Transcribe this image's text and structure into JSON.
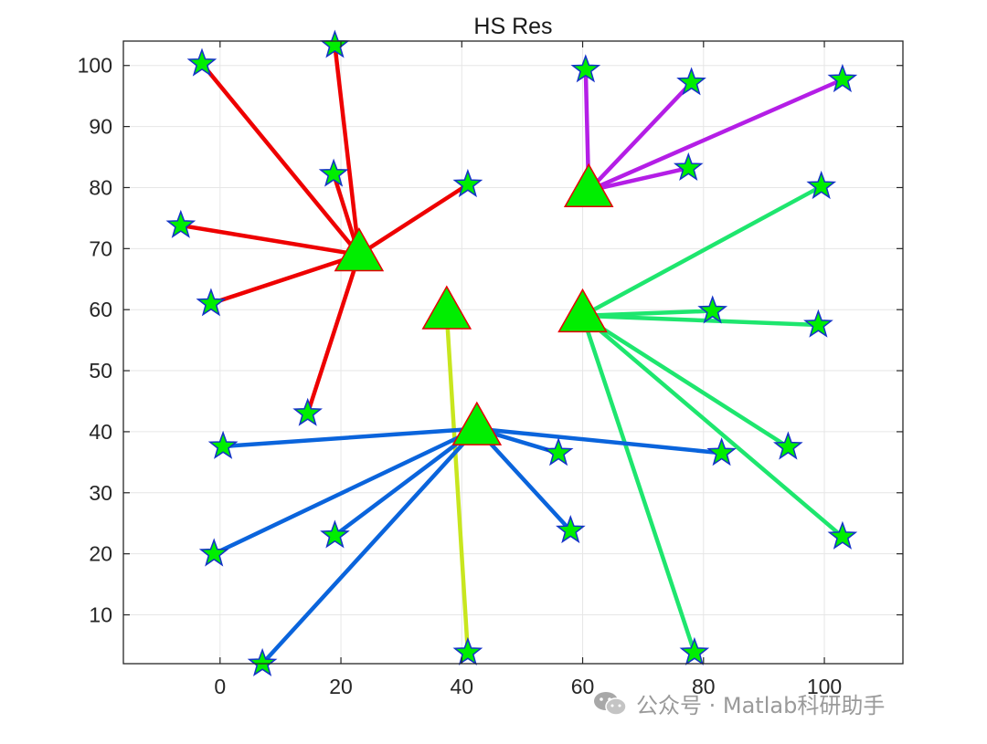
{
  "chart_data": {
    "type": "scatter",
    "title": "HS Res",
    "xlabel": "",
    "ylabel": "",
    "xlim": [
      -16,
      113
    ],
    "ylim": [
      2,
      104
    ],
    "xticks": [
      0,
      20,
      40,
      60,
      80,
      100
    ],
    "yticks": [
      10,
      20,
      30,
      40,
      50,
      60,
      70,
      80,
      90,
      100
    ],
    "grid": true,
    "legend": "none",
    "clusters": [
      {
        "color": "#ee0000",
        "center": [
          23,
          69
        ],
        "points": [
          [
            -3,
            100.3
          ],
          [
            19,
            103.3
          ],
          [
            18.8,
            82.2
          ],
          [
            41,
            80.5
          ],
          [
            -6.5,
            73.8
          ],
          [
            -1.5,
            61
          ],
          [
            14.5,
            43
          ]
        ]
      },
      {
        "color": "#b41ee6",
        "center": [
          61,
          79.5
        ],
        "points": [
          [
            60.5,
            99.3
          ],
          [
            78,
            97.2
          ],
          [
            103,
            97.7
          ],
          [
            77.5,
            83.2
          ]
        ]
      },
      {
        "color": "#1ee66e",
        "center": [
          60,
          59
        ],
        "points": [
          [
            99.5,
            80.2
          ],
          [
            81.5,
            59.8
          ],
          [
            99,
            57.5
          ],
          [
            94,
            37.5
          ],
          [
            103,
            22.8
          ],
          [
            78.5,
            3.8
          ]
        ]
      },
      {
        "color": "#c8e61e",
        "center": [
          37.5,
          59.5
        ],
        "points": [
          [
            41,
            3.8
          ]
        ]
      },
      {
        "color": "#0a64dc",
        "center": [
          42.5,
          40.5
        ],
        "points": [
          [
            0.5,
            37.6
          ],
          [
            56,
            36.5
          ],
          [
            83,
            36.5
          ],
          [
            58,
            23.8
          ],
          [
            19,
            23
          ],
          [
            -1,
            20
          ],
          [
            7,
            2
          ]
        ]
      }
    ],
    "center_marker": {
      "shape": "triangle",
      "fill": "#00ee00",
      "edge": "#e60000"
    },
    "point_marker": {
      "shape": "star",
      "fill": "#00ee00",
      "edge": "#1432c8"
    }
  },
  "watermark": {
    "icon": "wechat-icon",
    "text": "公众号 · Matlab科研助手"
  }
}
